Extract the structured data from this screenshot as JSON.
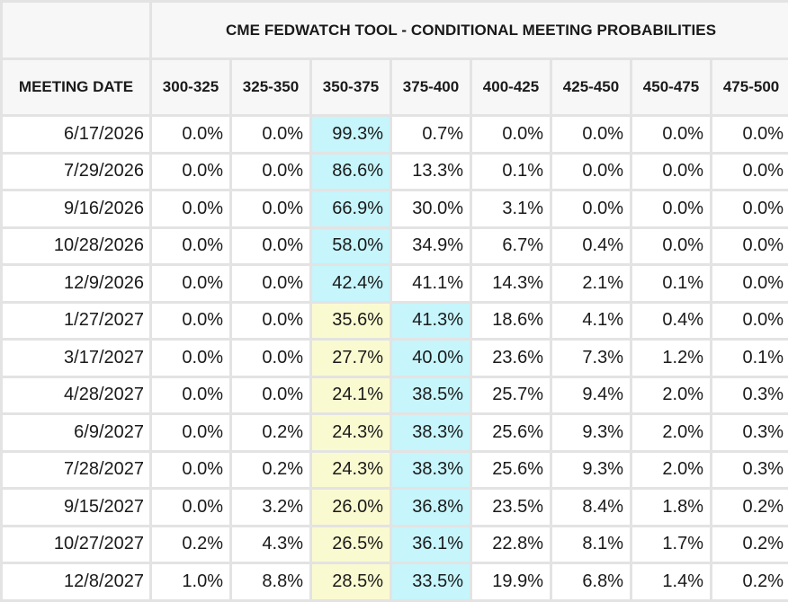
{
  "colors": {
    "grid": "#e3e3e3",
    "header_bg": "#f7f7f7",
    "cell_bg": "#ffffff",
    "highlight_max": "#c6f5fb",
    "highlight_current": "#fafad1"
  },
  "chart_data": {
    "type": "table",
    "title": "CME FEDWATCH TOOL - CONDITIONAL MEETING PROBABILITIES",
    "row_header_label": "MEETING DATE",
    "columns": [
      "300-325",
      "325-350",
      "350-375",
      "375-400",
      "400-425",
      "425-450",
      "450-475",
      "475-500"
    ],
    "rows": [
      {
        "date": "6/17/2026",
        "values": [
          "0.0%",
          "0.0%",
          "99.3%",
          "0.7%",
          "0.0%",
          "0.0%",
          "0.0%",
          "0.0%"
        ],
        "highlight": [
          "",
          "",
          "cyan",
          "",
          "",
          "",
          "",
          ""
        ]
      },
      {
        "date": "7/29/2026",
        "values": [
          "0.0%",
          "0.0%",
          "86.6%",
          "13.3%",
          "0.1%",
          "0.0%",
          "0.0%",
          "0.0%"
        ],
        "highlight": [
          "",
          "",
          "cyan",
          "",
          "",
          "",
          "",
          ""
        ]
      },
      {
        "date": "9/16/2026",
        "values": [
          "0.0%",
          "0.0%",
          "66.9%",
          "30.0%",
          "3.1%",
          "0.0%",
          "0.0%",
          "0.0%"
        ],
        "highlight": [
          "",
          "",
          "cyan",
          "",
          "",
          "",
          "",
          ""
        ]
      },
      {
        "date": "10/28/2026",
        "values": [
          "0.0%",
          "0.0%",
          "58.0%",
          "34.9%",
          "6.7%",
          "0.4%",
          "0.0%",
          "0.0%"
        ],
        "highlight": [
          "",
          "",
          "cyan",
          "",
          "",
          "",
          "",
          ""
        ]
      },
      {
        "date": "12/9/2026",
        "values": [
          "0.0%",
          "0.0%",
          "42.4%",
          "41.1%",
          "14.3%",
          "2.1%",
          "0.1%",
          "0.0%"
        ],
        "highlight": [
          "",
          "",
          "cyan",
          "",
          "",
          "",
          "",
          ""
        ]
      },
      {
        "date": "1/27/2027",
        "values": [
          "0.0%",
          "0.0%",
          "35.6%",
          "41.3%",
          "18.6%",
          "4.1%",
          "0.4%",
          "0.0%"
        ],
        "highlight": [
          "",
          "",
          "yellow",
          "cyan",
          "",
          "",
          "",
          ""
        ]
      },
      {
        "date": "3/17/2027",
        "values": [
          "0.0%",
          "0.0%",
          "27.7%",
          "40.0%",
          "23.6%",
          "7.3%",
          "1.2%",
          "0.1%"
        ],
        "highlight": [
          "",
          "",
          "yellow",
          "cyan",
          "",
          "",
          "",
          ""
        ]
      },
      {
        "date": "4/28/2027",
        "values": [
          "0.0%",
          "0.0%",
          "24.1%",
          "38.5%",
          "25.7%",
          "9.4%",
          "2.0%",
          "0.3%"
        ],
        "highlight": [
          "",
          "",
          "yellow",
          "cyan",
          "",
          "",
          "",
          ""
        ]
      },
      {
        "date": "6/9/2027",
        "values": [
          "0.0%",
          "0.2%",
          "24.3%",
          "38.3%",
          "25.6%",
          "9.3%",
          "2.0%",
          "0.3%"
        ],
        "highlight": [
          "",
          "",
          "yellow",
          "cyan",
          "",
          "",
          "",
          ""
        ]
      },
      {
        "date": "7/28/2027",
        "values": [
          "0.0%",
          "0.2%",
          "24.3%",
          "38.3%",
          "25.6%",
          "9.3%",
          "2.0%",
          "0.3%"
        ],
        "highlight": [
          "",
          "",
          "yellow",
          "cyan",
          "",
          "",
          "",
          ""
        ]
      },
      {
        "date": "9/15/2027",
        "values": [
          "0.0%",
          "3.2%",
          "26.0%",
          "36.8%",
          "23.5%",
          "8.4%",
          "1.8%",
          "0.2%"
        ],
        "highlight": [
          "",
          "",
          "yellow",
          "cyan",
          "",
          "",
          "",
          ""
        ]
      },
      {
        "date": "10/27/2027",
        "values": [
          "0.2%",
          "4.3%",
          "26.5%",
          "36.1%",
          "22.8%",
          "8.1%",
          "1.7%",
          "0.2%"
        ],
        "highlight": [
          "",
          "",
          "yellow",
          "cyan",
          "",
          "",
          "",
          ""
        ]
      },
      {
        "date": "12/8/2027",
        "values": [
          "1.0%",
          "8.8%",
          "28.5%",
          "33.5%",
          "19.9%",
          "6.8%",
          "1.4%",
          "0.2%"
        ],
        "highlight": [
          "",
          "",
          "yellow",
          "cyan",
          "",
          "",
          "",
          ""
        ]
      }
    ]
  }
}
